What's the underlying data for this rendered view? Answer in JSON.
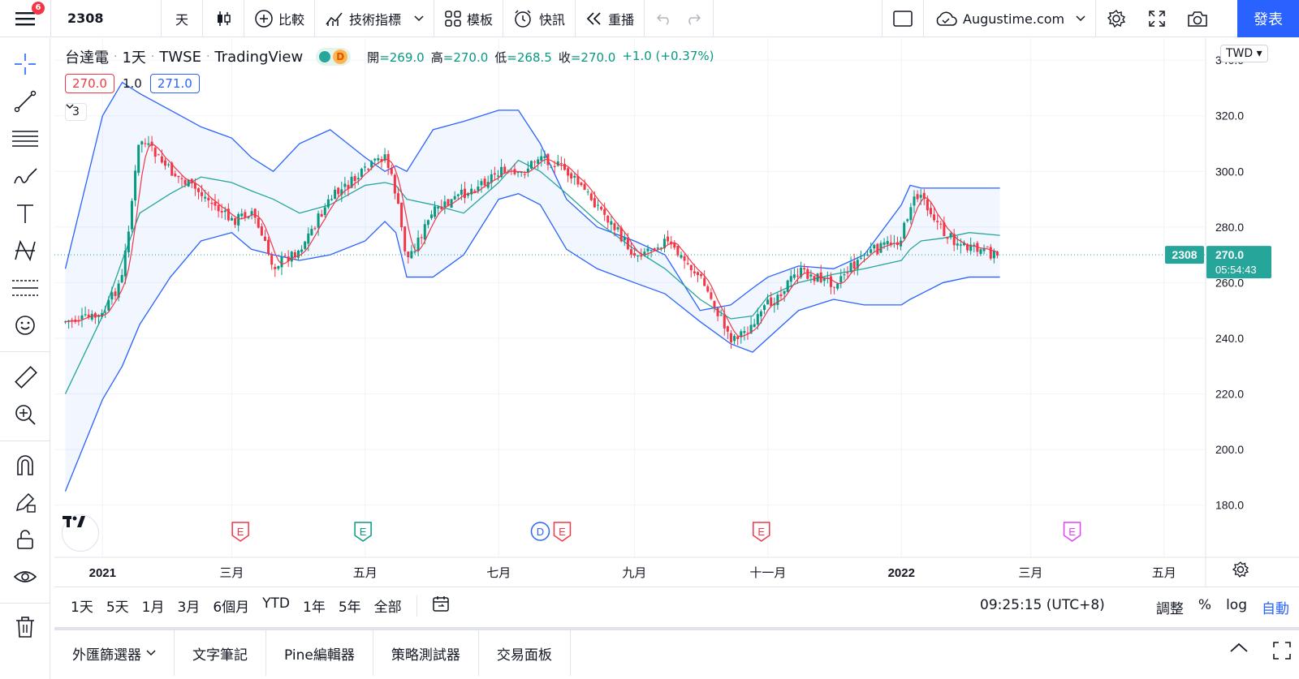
{
  "topbar": {
    "notification_count": "6",
    "symbol": "2308",
    "interval": "天",
    "compare": "比較",
    "indicators": "技術指標",
    "templates": "模板",
    "alerts": "快訊",
    "replay": "重播",
    "layout_name": "Augustime.com",
    "publish": "發表"
  },
  "legend": {
    "name": "台達電",
    "interval": "1天",
    "exchange": "TWSE",
    "source": "TradingView",
    "pill_letter": "D",
    "open_label": "開",
    "open": "269.0",
    "high_label": "高",
    "high": "270.0",
    "low_label": "低",
    "low": "268.5",
    "close_label": "收",
    "close": "270.0",
    "change": "+1.0 (+0.37%)"
  },
  "bb_inputs": {
    "upper": "270.0",
    "mult": "1.0",
    "lower": "271.0"
  },
  "collapse_count": "3",
  "currency": "TWD",
  "price_axis": {
    "ticks": [
      "340.0",
      "320.0",
      "300.0",
      "280.0",
      "260.0",
      "240.0",
      "220.0",
      "200.0",
      "180.0"
    ],
    "symbol_tag": "2308",
    "last_price": "270.0",
    "countdown": "05:54:43"
  },
  "time_axis": {
    "labels": [
      "2021",
      "三月",
      "五月",
      "七月",
      "九月",
      "十一月",
      "2022",
      "三月",
      "五月"
    ]
  },
  "event_markers": [
    {
      "letter": "E",
      "color": "#f23645"
    },
    {
      "letter": "E",
      "color": "#089981"
    },
    {
      "letter": "D",
      "color": "#2962ff"
    },
    {
      "letter": "E",
      "color": "#f23645"
    },
    {
      "letter": "E",
      "color": "#f23645"
    },
    {
      "letter": "E",
      "color": "#e040fb"
    }
  ],
  "range_buttons": [
    "1天",
    "5天",
    "1月",
    "3月",
    "6個月",
    "YTD",
    "1年",
    "5年",
    "全部"
  ],
  "clock": "09:25:15 (UTC+8)",
  "scale_opts": {
    "adjust": "調整",
    "percent": "%",
    "log": "log",
    "auto": "自動"
  },
  "bottom_tabs": [
    "外匯篩選器",
    "文字筆記",
    "Pine編輯器",
    "策略測試器",
    "交易面板"
  ],
  "colors": {
    "up": "#089981",
    "down": "#f23645",
    "accent": "#2962ff",
    "band": "#2962ff",
    "basis": "#26a69a",
    "ma": "#f23645"
  },
  "chart_data": {
    "type": "candlestick",
    "symbol": "2308",
    "currency": "TWD",
    "ylim": [
      170,
      345
    ],
    "x_range": [
      "2020-12",
      "2022-05"
    ],
    "last": {
      "open": 269.0,
      "high": 270.0,
      "low": 268.5,
      "close": 270.0,
      "change": 1.0,
      "change_pct": 0.37
    },
    "close_series": {
      "dates": [
        "2020-12-15",
        "2021-01-01",
        "2021-01-10",
        "2021-01-18",
        "2021-02-01",
        "2021-02-15",
        "2021-03-01",
        "2021-03-10",
        "2021-03-20",
        "2021-04-01",
        "2021-04-15",
        "2021-05-01",
        "2021-05-10",
        "2021-05-15",
        "2021-05-20",
        "2021-06-01",
        "2021-06-15",
        "2021-07-01",
        "2021-07-10",
        "2021-07-20",
        "2021-08-01",
        "2021-08-15",
        "2021-09-01",
        "2021-09-15",
        "2021-10-01",
        "2021-10-15",
        "2021-10-25",
        "2021-11-01",
        "2021-11-15",
        "2021-12-01",
        "2021-12-15",
        "2022-01-01",
        "2022-01-05",
        "2022-01-10",
        "2022-01-20",
        "2022-02-01",
        "2022-02-15"
      ],
      "close": [
        246,
        248,
        262,
        312,
        300,
        292,
        282,
        286,
        266,
        272,
        290,
        300,
        306,
        292,
        268,
        285,
        292,
        300,
        298,
        306,
        300,
        288,
        270,
        275,
        262,
        240,
        244,
        252,
        264,
        260,
        270,
        276,
        288,
        292,
        278,
        272,
        270
      ]
    },
    "bollinger": {
      "upper": [
        265,
        320,
        332,
        328,
        322,
        316,
        312,
        305,
        300,
        310,
        315,
        305,
        300,
        302,
        300,
        315,
        318,
        322,
        322,
        310,
        290,
        280,
        275,
        270,
        250,
        252,
        258,
        262,
        266,
        265,
        270,
        288,
        295,
        294,
        294,
        294,
        294
      ],
      "basis": [
        220,
        248,
        268,
        285,
        292,
        298,
        296,
        293,
        290,
        285,
        288,
        295,
        296,
        295,
        290,
        288,
        285,
        296,
        304,
        300,
        292,
        282,
        272,
        265,
        254,
        247,
        248,
        255,
        260,
        263,
        265,
        268,
        272,
        275,
        276,
        278,
        277
      ],
      "lower": [
        185,
        218,
        230,
        245,
        262,
        275,
        278,
        272,
        270,
        268,
        270,
        275,
        282,
        278,
        262,
        262,
        270,
        290,
        292,
        288,
        272,
        265,
        260,
        256,
        246,
        238,
        235,
        240,
        250,
        254,
        252,
        252,
        254,
        256,
        260,
        262,
        262
      ]
    }
  }
}
